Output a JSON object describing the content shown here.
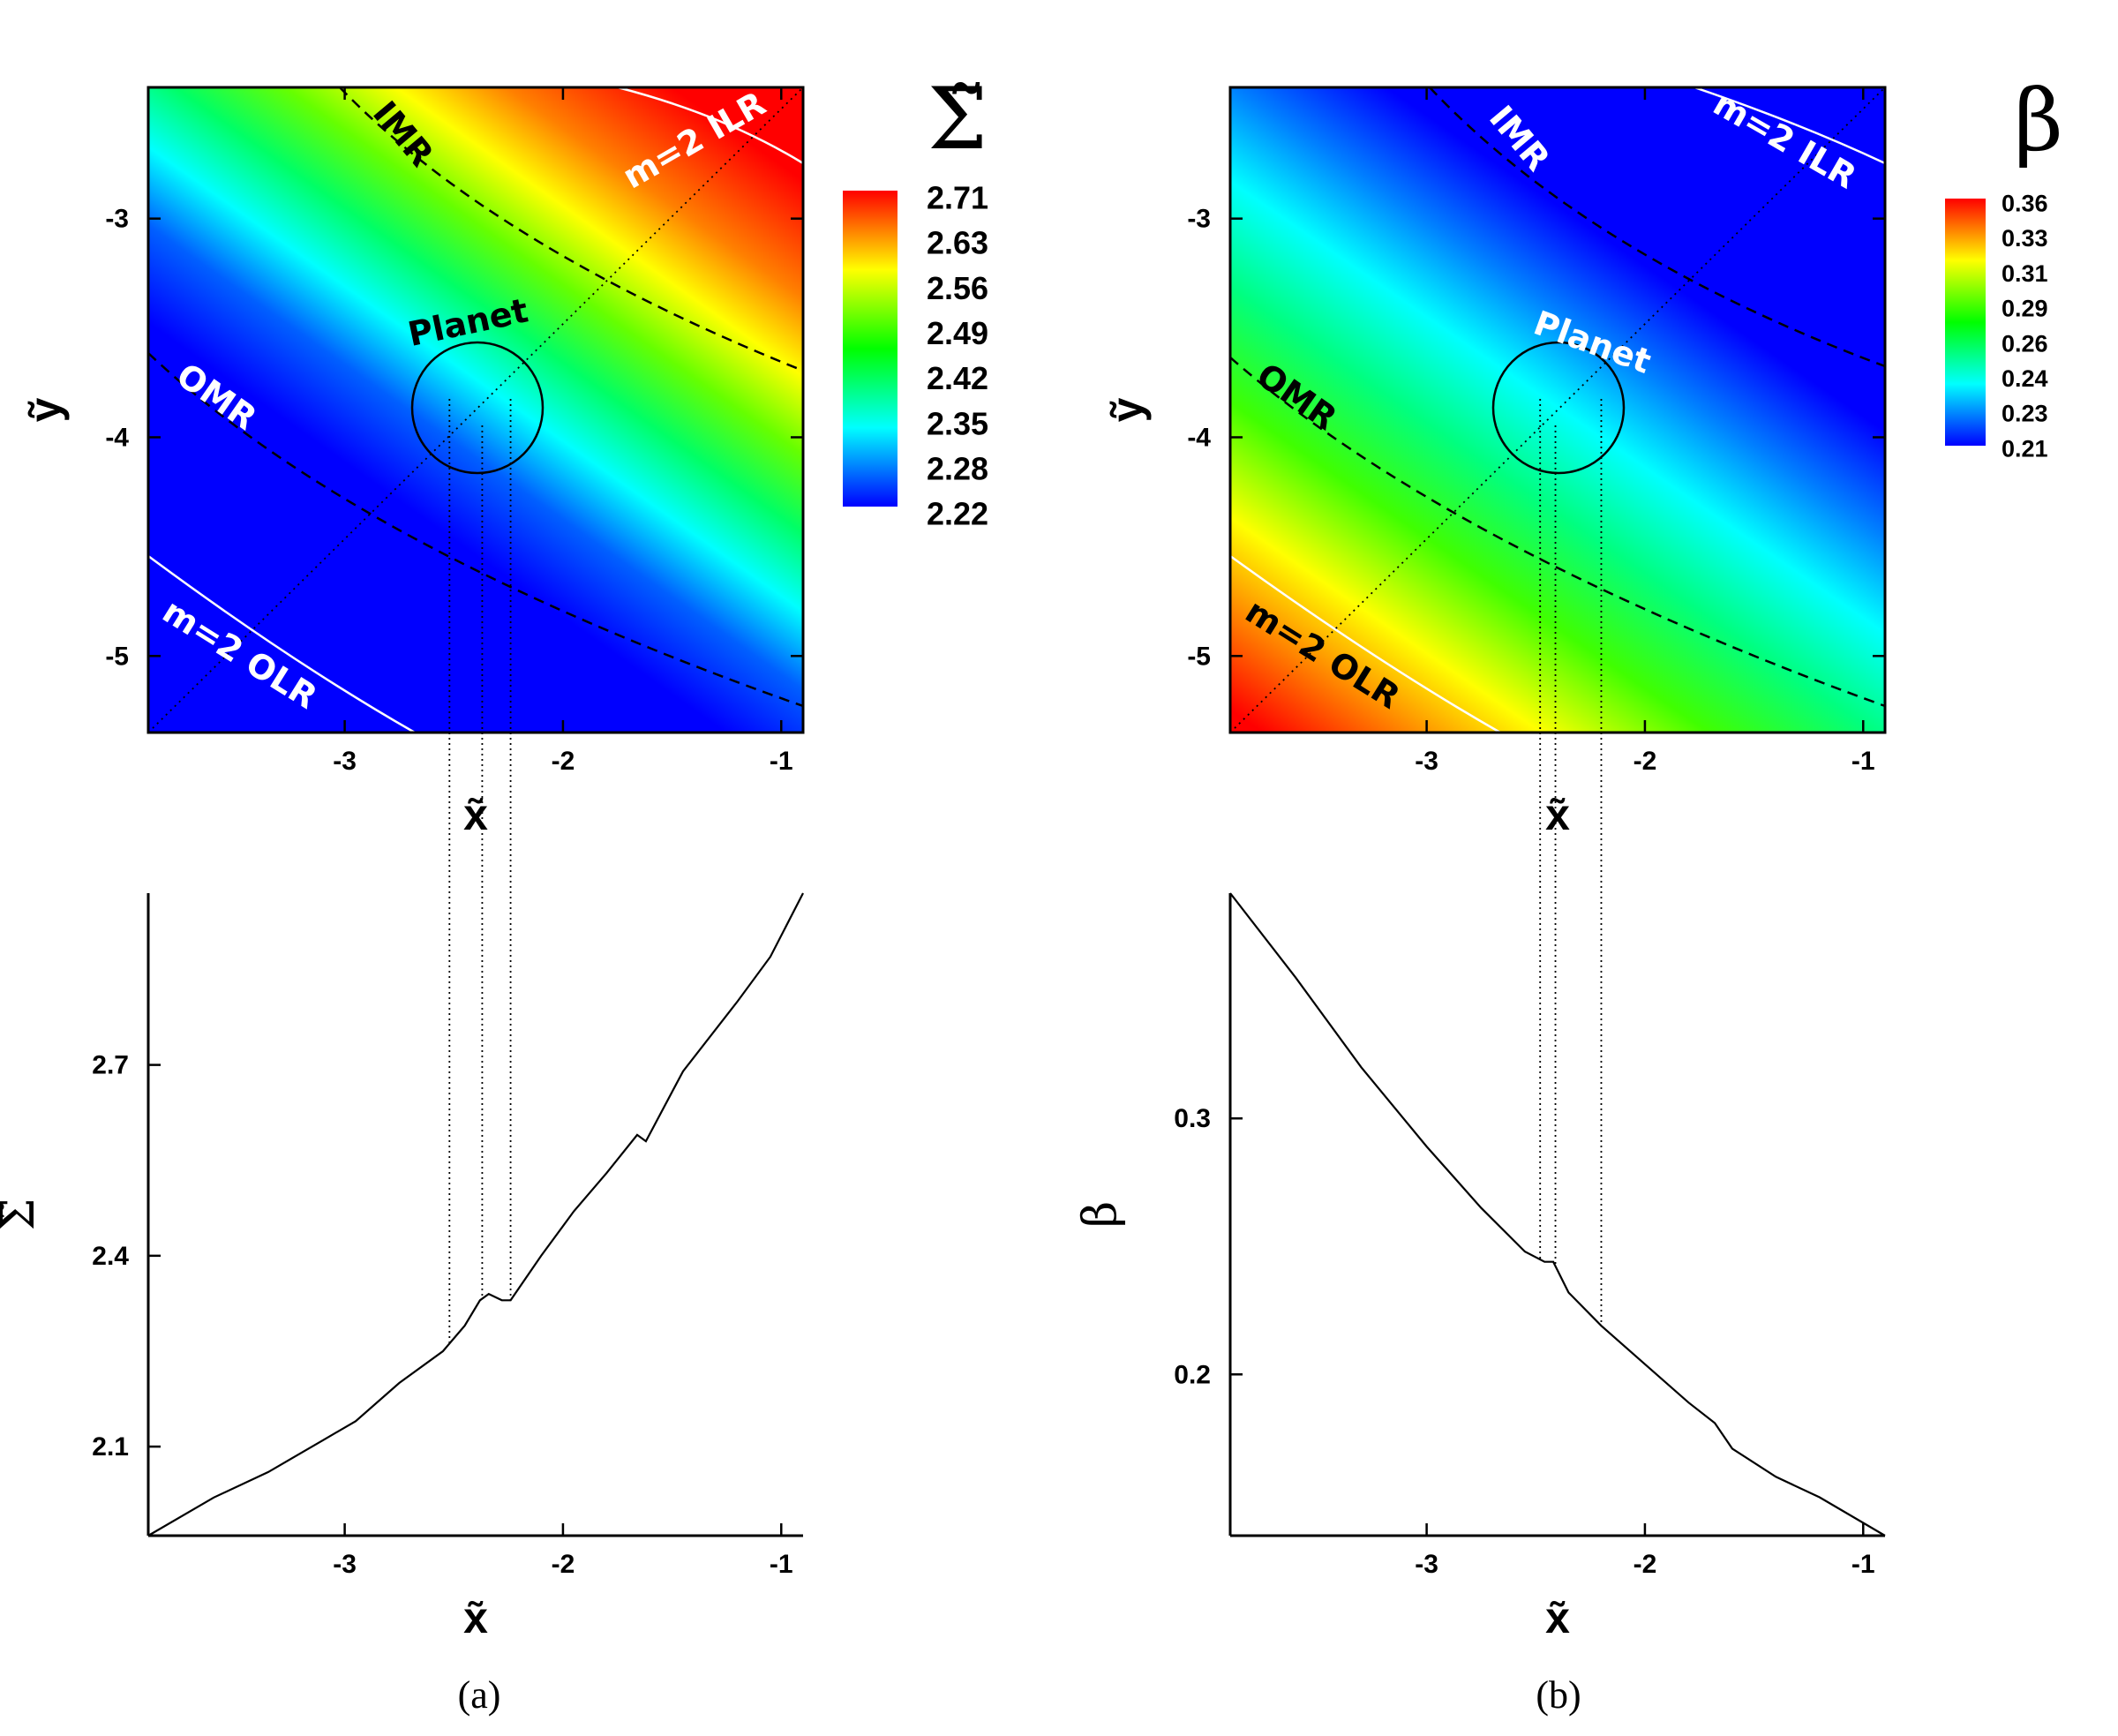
{
  "colors": {
    "jet": [
      "#0000ff",
      "#0080ff",
      "#00ffff",
      "#00ff80",
      "#00ff00",
      "#80ff00",
      "#ffff00",
      "#ff8000",
      "#ff0000"
    ],
    "dashed_line": "#000000",
    "resonance_white": "#ffffff"
  },
  "chart_data": [
    {
      "id": "a-top",
      "type": "heatmap",
      "title": "Σ̃",
      "xlabel": "x̃",
      "ylabel": "ỹ",
      "xlim": [
        -3.9,
        -0.9
      ],
      "ylim": [
        -5.35,
        -2.4
      ],
      "xticks": [
        "-3",
        "-2",
        "-1"
      ],
      "yticks": [
        "-3",
        "-4",
        "-5"
      ],
      "colorbar": {
        "title": "Σ̃",
        "labels": [
          "2.71",
          "2.63",
          "2.56",
          "2.49",
          "2.42",
          "2.35",
          "2.28",
          "2.22"
        ]
      },
      "annotations": [
        "IMR",
        "m=2 ILR",
        "OMR",
        "m=2 OLR",
        "Planet"
      ]
    },
    {
      "id": "b-top",
      "type": "heatmap",
      "title": "β",
      "xlabel": "x̃",
      "ylabel": "ỹ",
      "xlim": [
        -3.9,
        -0.9
      ],
      "ylim": [
        -5.35,
        -2.4
      ],
      "xticks": [
        "-3",
        "-2",
        "-1"
      ],
      "yticks": [
        "-3",
        "-4",
        "-5"
      ],
      "colorbar": {
        "title": "β",
        "labels": [
          "0.36",
          "0.33",
          "0.31",
          "0.29",
          "0.26",
          "0.24",
          "0.23",
          "0.21"
        ]
      },
      "annotations": [
        "IMR",
        "m=2 ILR",
        "OMR",
        "m=2 OLR",
        "Planet"
      ]
    },
    {
      "id": "a-bottom",
      "type": "line",
      "xlabel": "x̃",
      "ylabel": "Σ̃",
      "xlim": [
        -3.9,
        -0.9
      ],
      "ylim": [
        1.96,
        2.97
      ],
      "xticks": [
        "-3",
        "-2",
        "-1"
      ],
      "yticks": [
        "2.1",
        "2.4",
        "2.7"
      ],
      "series": [
        {
          "name": "Σ̃",
          "x": [
            -3.9,
            -3.6,
            -3.35,
            -3.1,
            -2.95,
            -2.75,
            -2.55,
            -2.45,
            -2.38,
            -2.34,
            -2.28,
            -2.24,
            -2.1,
            -1.95,
            -1.8,
            -1.66,
            -1.62,
            -1.45,
            -1.2,
            -1.05,
            -0.9
          ],
          "y": [
            1.96,
            2.02,
            2.06,
            2.11,
            2.14,
            2.2,
            2.25,
            2.29,
            2.33,
            2.34,
            2.33,
            2.33,
            2.4,
            2.47,
            2.53,
            2.59,
            2.58,
            2.69,
            2.8,
            2.87,
            2.97
          ]
        }
      ],
      "guides_x": [
        -2.52,
        -2.37,
        -2.24
      ]
    },
    {
      "id": "b-bottom",
      "type": "line",
      "xlabel": "x̃",
      "ylabel": "β",
      "xlim": [
        -3.9,
        -0.9
      ],
      "ylim": [
        0.137,
        0.388
      ],
      "xticks": [
        "-3",
        "-2",
        "-1"
      ],
      "yticks": [
        "0.2",
        "0.3"
      ],
      "series": [
        {
          "name": "β",
          "x": [
            -3.9,
            -3.6,
            -3.3,
            -3.0,
            -2.75,
            -2.55,
            -2.46,
            -2.42,
            -2.35,
            -2.2,
            -2.0,
            -1.8,
            -1.68,
            -1.6,
            -1.4,
            -1.2,
            -1.0,
            -0.9
          ],
          "y": [
            0.388,
            0.355,
            0.32,
            0.289,
            0.265,
            0.248,
            0.244,
            0.244,
            0.232,
            0.219,
            0.204,
            0.189,
            0.181,
            0.171,
            0.16,
            0.152,
            0.142,
            0.137
          ]
        }
      ],
      "guides_x": [
        -2.48,
        -2.41,
        -2.2
      ]
    }
  ],
  "captions": {
    "a": "(a)",
    "b": "(b)"
  }
}
